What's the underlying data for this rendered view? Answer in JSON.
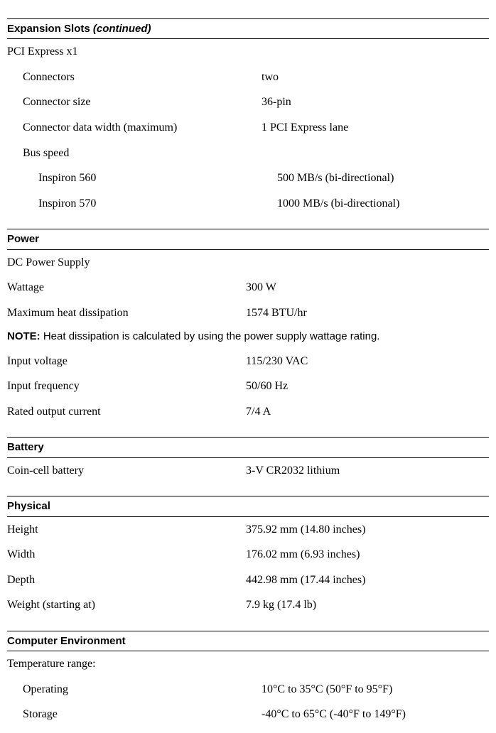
{
  "sections": {
    "expansion": {
      "title_main": "Expansion Slots ",
      "title_suffix": "(continued)",
      "sub1": "PCI Express x1",
      "r1_label": "Connectors",
      "r1_value": "two",
      "r2_label": "Connector size",
      "r2_value": "36-pin",
      "r3_label": "Connector data width (maximum)",
      "r3_value": "1 PCI Express lane",
      "r4_label": "Bus speed",
      "r5_label": "Inspiron 560",
      "r5_value": "500 MB/s (bi-directional)",
      "r6_label": "Inspiron 570",
      "r6_value": "1000 MB/s (bi-directional)"
    },
    "power": {
      "title": "Power",
      "sub1": "DC Power Supply",
      "r1_label": "Wattage",
      "r1_value": "300 W",
      "r2_label": "Maximum heat dissipation",
      "r2_value": "1574 BTU/hr",
      "note_label": "NOTE: ",
      "note_text": "Heat dissipation is calculated by using the power supply wattage rating.",
      "r3_label": "Input voltage",
      "r3_value": "115/230 VAC",
      "r4_label": "Input frequency",
      "r4_value": "50/60 Hz",
      "r5_label": "Rated output current",
      "r5_value": "7/4 A"
    },
    "battery": {
      "title": "Battery",
      "r1_label": "Coin-cell battery",
      "r1_value": "3-V CR2032 lithium"
    },
    "physical": {
      "title": "Physical",
      "r1_label": "Height",
      "r1_value": "375.92 mm (14.80 inches)",
      "r2_label": "Width",
      "r2_value": "176.02 mm (6.93 inches)",
      "r3_label": "Depth",
      "r3_value": "442.98 mm (17.44 inches)",
      "r4_label": "Weight (starting at)",
      "r4_value": "7.9 kg (17.4 lb)"
    },
    "environment": {
      "title": "Computer Environment",
      "sub1": "Temperature range:",
      "r1_label": "Operating",
      "r1_value": "10°C to 35°C (50°F to 95°F)",
      "r2_label": "Storage",
      "r2_value": "-40°C to 65°C (-40°F to 149°F)"
    }
  }
}
